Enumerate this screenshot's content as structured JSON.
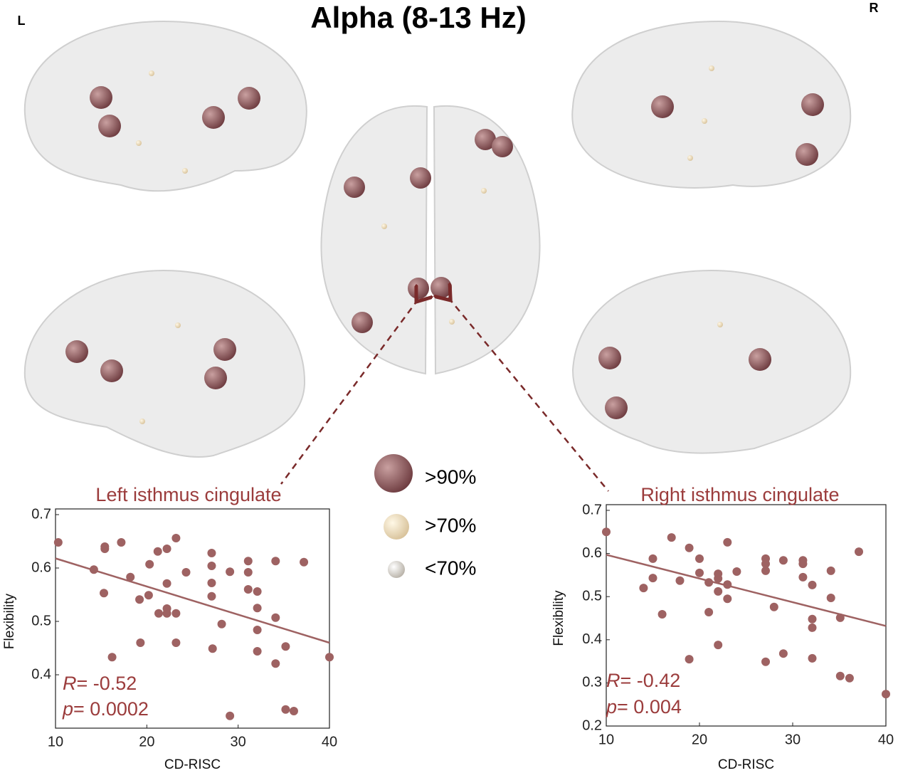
{
  "title": "Alpha (8-13 Hz)",
  "left_label": "L",
  "right_label": "R",
  "legend": [
    ">90%",
    ">70%",
    "<70%"
  ],
  "chart_data": [
    {
      "type": "scatter",
      "title": "Left isthmus cingulate",
      "xlabel": "CD-RISC",
      "ylabel": "Flexibility",
      "color": "#9e6262",
      "x": [
        10.3,
        14.2,
        15.4,
        15.4,
        17.2,
        15.3,
        16.2,
        18.2,
        19.3,
        19.2,
        20.3,
        20.2,
        21.2,
        21.3,
        22.2,
        22.2,
        22.2,
        22.2,
        23.2,
        23.2,
        23.2,
        24.3,
        27.1,
        27.1,
        27.1,
        27.1,
        27.2,
        28.2,
        29.1,
        29.1,
        31.1,
        31.1,
        31.1,
        32.1,
        32.1,
        32.1,
        32.1,
        34.1,
        34.1,
        34.1,
        35.2,
        35.2,
        36.1,
        37.2,
        40
      ],
      "values": [
        0.648,
        0.597,
        0.64,
        0.636,
        0.648,
        0.553,
        0.433,
        0.583,
        0.46,
        0.541,
        0.607,
        0.549,
        0.631,
        0.515,
        0.636,
        0.571,
        0.524,
        0.515,
        0.656,
        0.515,
        0.46,
        0.592,
        0.628,
        0.604,
        0.572,
        0.547,
        0.449,
        0.495,
        0.593,
        0.323,
        0.613,
        0.592,
        0.56,
        0.556,
        0.525,
        0.484,
        0.444,
        0.613,
        0.507,
        0.421,
        0.453,
        0.335,
        0.332,
        0.611,
        0.433
      ],
      "fit": {
        "x": [
          10,
          40
        ],
        "values": [
          0.618,
          0.46
        ]
      },
      "xlim": [
        10,
        40
      ],
      "ylim": [
        0.3,
        0.7
      ],
      "xticks": [
        10,
        20,
        30,
        40
      ],
      "yticks": [
        0.4,
        0.5,
        0.6,
        0.7
      ],
      "annotations": [
        {
          "symbol": "R",
          "text": "= -0.52"
        },
        {
          "symbol": "p",
          "text": "= 0.0002"
        }
      ]
    },
    {
      "type": "scatter",
      "title": "Right isthmus cingulate",
      "xlabel": "CD-RISC",
      "ylabel": "Flexibility",
      "color": "#9e6262",
      "x": [
        10,
        14,
        15,
        15,
        16,
        17,
        17.9,
        18.9,
        18.9,
        20,
        20,
        21,
        21,
        22,
        22,
        22,
        22,
        23,
        23,
        23,
        24,
        27.1,
        27.1,
        27.1,
        27.1,
        28,
        29,
        29,
        31.1,
        31.1,
        31.1,
        32.1,
        32.1,
        32.1,
        32.1,
        34.1,
        34.1,
        35.1,
        35.1,
        36.1,
        37.1,
        40
      ],
      "values": [
        0.65,
        0.52,
        0.543,
        0.588,
        0.459,
        0.637,
        0.537,
        0.613,
        0.355,
        0.588,
        0.555,
        0.533,
        0.464,
        0.512,
        0.553,
        0.542,
        0.388,
        0.626,
        0.528,
        0.495,
        0.558,
        0.588,
        0.576,
        0.56,
        0.349,
        0.476,
        0.584,
        0.368,
        0.584,
        0.576,
        0.545,
        0.527,
        0.448,
        0.428,
        0.357,
        0.56,
        0.497,
        0.451,
        0.316,
        0.311,
        0.604,
        0.274
      ],
      "fit": {
        "x": [
          10,
          40
        ],
        "values": [
          0.597,
          0.432
        ]
      },
      "xlim": [
        10,
        40
      ],
      "ylim": [
        0.2,
        0.7
      ],
      "xticks": [
        10,
        20,
        30,
        40
      ],
      "yticks": [
        0.2,
        0.3,
        0.4,
        0.5,
        0.6,
        0.7
      ],
      "annotations": [
        {
          "symbol": "R",
          "text": "= -0.42"
        },
        {
          "symbol": "p",
          "text": "= 0.004"
        }
      ]
    }
  ]
}
